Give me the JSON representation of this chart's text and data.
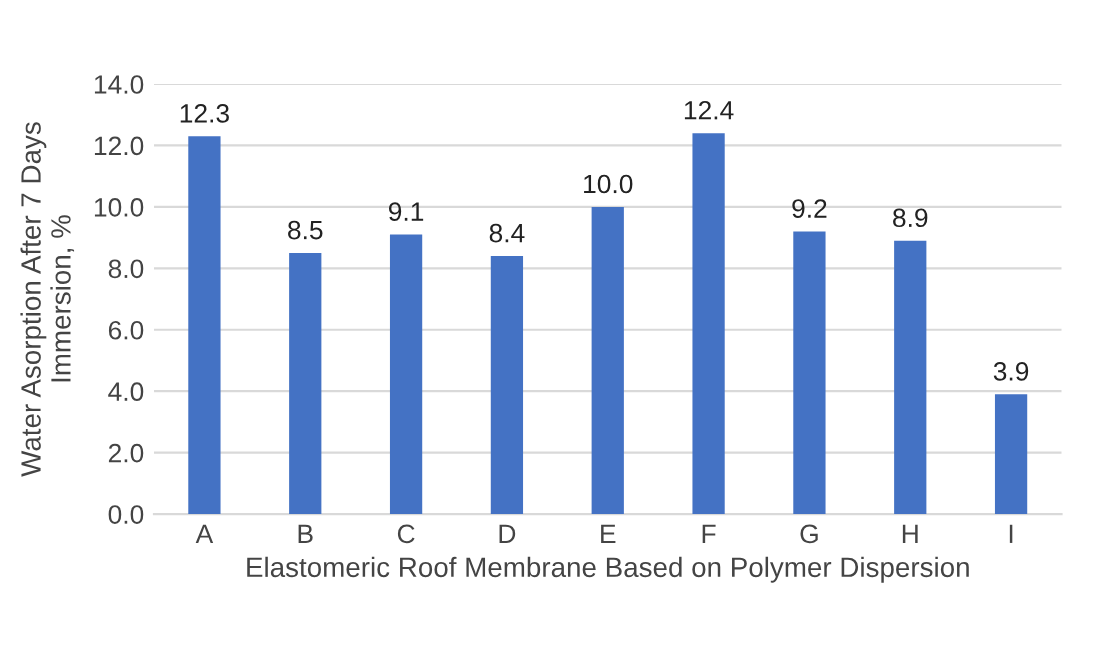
{
  "chart_data": {
    "type": "bar",
    "xlabel": "Elastomeric Roof Membrane Based on Polymer Dispersion",
    "ylabel": "Water Asorption After 7 Days\nImmersion, %",
    "categories": [
      "A",
      "B",
      "C",
      "D",
      "E",
      "F",
      "G",
      "H",
      "I"
    ],
    "values": [
      12.3,
      8.5,
      9.1,
      8.4,
      10.0,
      12.4,
      9.2,
      8.9,
      3.9
    ],
    "value_labels": [
      "12.3",
      "8.5",
      "9.1",
      "8.4",
      "10.0",
      "12.4",
      "9.2",
      "8.9",
      "3.9"
    ],
    "color": "#4472c4",
    "ylim": [
      0,
      14
    ],
    "yticks": [
      {
        "value": 0,
        "label": "0.0"
      },
      {
        "value": 2,
        "label": "2.0"
      },
      {
        "value": 4,
        "label": "4.0"
      },
      {
        "value": 6,
        "label": "6.0"
      },
      {
        "value": 8,
        "label": "8.0"
      },
      {
        "value": 10,
        "label": "10.0"
      },
      {
        "value": 12,
        "label": "12.0"
      },
      {
        "value": 14,
        "label": "14.0"
      }
    ],
    "grid": "y",
    "legend": false
  }
}
